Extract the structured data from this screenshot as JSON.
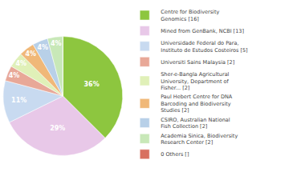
{
  "chart_data": {
    "type": "pie",
    "categories": [
      "Centre for Biodiversity\nGenomics [16]",
      "Mined from GenBank, NCBI [13]",
      "Universidade Federal do Para,\nInstituto de Estudos Costeiros [5]",
      "Universiti Sains Malaysia [2]",
      "Sher-e-Bangla Agricultural\nUniversity, Department of\nFisher... [2]",
      "Paul Hebert Centre for DNA\nBarcoding and Biodiversity\nStudies [2]",
      "CSIRO, Australian National\nFish Collection [2]",
      "Academia Sinica, Biodiversity\nResearch Center [2]",
      "0 Others []"
    ],
    "values": [
      36,
      29,
      11,
      4,
      4,
      4,
      4,
      4,
      0.0023
    ],
    "value_labels": [
      "36%",
      "29%",
      "11%",
      "4%",
      "4%",
      "4%",
      "4%",
      "4%",
      null
    ],
    "colors": [
      "#8dc63f",
      "#e8c8e8",
      "#c8daf0",
      "#e8a898",
      "#e0f0b8",
      "#f0b878",
      "#b8d0e8",
      "#c8e8b8",
      "#d87060"
    ],
    "data_labels": true,
    "legend": "right"
  }
}
